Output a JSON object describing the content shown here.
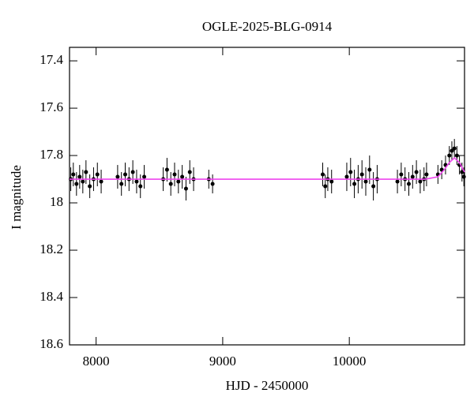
{
  "chart_data": {
    "type": "scatter",
    "title": "OGLE-2025-BLG-0914",
    "xlabel": "HJD - 2450000",
    "ylabel": "I magnitude",
    "xlim": [
      7790,
      10910
    ],
    "ylim": [
      17.343,
      18.6
    ],
    "y_inverted": true,
    "xticks": [
      8000,
      9000,
      10000
    ],
    "yticks": [
      17.4,
      17.6,
      17.8,
      18,
      18.2,
      18.4,
      18.6
    ],
    "observations": {
      "color": "#000000",
      "x": [
        7800,
        7820,
        7845,
        7870,
        7895,
        7920,
        7950,
        7980,
        8010,
        8040,
        8170,
        8200,
        8230,
        8260,
        8290,
        8320,
        8350,
        8380,
        8530,
        8560,
        8590,
        8620,
        8650,
        8680,
        8710,
        8740,
        8770,
        8890,
        8920,
        9790,
        9810,
        9830,
        9860,
        9980,
        10010,
        10040,
        10070,
        10100,
        10130,
        10160,
        10190,
        10220,
        10380,
        10410,
        10440,
        10470,
        10500,
        10530,
        10560,
        10590,
        10610,
        10700,
        10730,
        10760,
        10790,
        10810,
        10830,
        10850,
        10870,
        10890,
        10905
      ],
      "y": [
        17.9,
        17.88,
        17.92,
        17.89,
        17.91,
        17.87,
        17.93,
        17.9,
        17.88,
        17.91,
        17.89,
        17.92,
        17.88,
        17.9,
        17.87,
        17.91,
        17.93,
        17.89,
        17.9,
        17.86,
        17.92,
        17.88,
        17.91,
        17.89,
        17.94,
        17.87,
        17.9,
        17.9,
        17.92,
        17.88,
        17.93,
        17.9,
        17.91,
        17.89,
        17.87,
        17.92,
        17.9,
        17.88,
        17.91,
        17.86,
        17.93,
        17.9,
        17.91,
        17.88,
        17.9,
        17.92,
        17.89,
        17.87,
        17.91,
        17.9,
        17.88,
        17.88,
        17.86,
        17.84,
        17.8,
        17.78,
        17.77,
        17.8,
        17.84,
        17.87,
        17.89
      ],
      "err": [
        0.05,
        0.05,
        0.05,
        0.05,
        0.05,
        0.05,
        0.05,
        0.05,
        0.05,
        0.05,
        0.05,
        0.05,
        0.05,
        0.05,
        0.05,
        0.05,
        0.05,
        0.05,
        0.05,
        0.05,
        0.05,
        0.05,
        0.05,
        0.05,
        0.05,
        0.05,
        0.05,
        0.04,
        0.04,
        0.05,
        0.05,
        0.05,
        0.05,
        0.06,
        0.06,
        0.06,
        0.06,
        0.06,
        0.06,
        0.06,
        0.06,
        0.06,
        0.05,
        0.05,
        0.05,
        0.05,
        0.05,
        0.05,
        0.05,
        0.05,
        0.05,
        0.04,
        0.04,
        0.04,
        0.04,
        0.04,
        0.04,
        0.04,
        0.04,
        0.04,
        0.04
      ]
    },
    "model": {
      "color": "#ee44ee",
      "x": [
        7790,
        10600,
        10700,
        10750,
        10790,
        10830,
        10870,
        10910
      ],
      "y": [
        17.9,
        17.9,
        17.89,
        17.86,
        17.83,
        17.81,
        17.83,
        17.87
      ]
    }
  }
}
